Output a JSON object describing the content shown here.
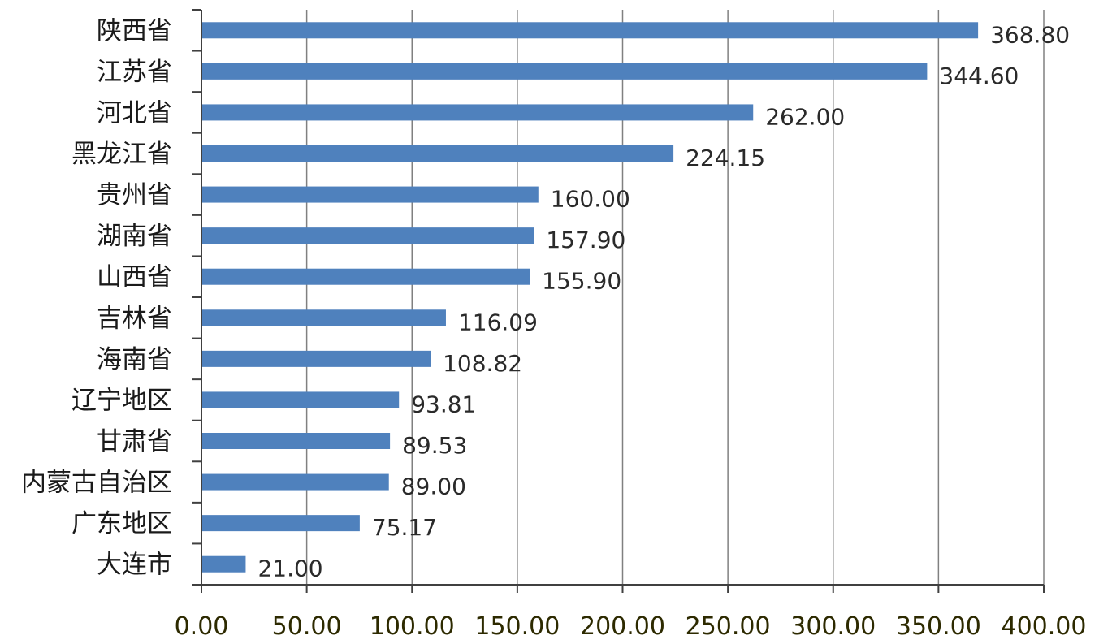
{
  "chart_data": {
    "type": "bar",
    "orientation": "horizontal",
    "title": "",
    "xlabel": "",
    "ylabel": "",
    "xlim": [
      0,
      400
    ],
    "x_ticks": [
      0,
      50,
      100,
      150,
      200,
      250,
      300,
      350,
      400
    ],
    "x_tick_labels": [
      "0.00",
      "50.00",
      "100.00",
      "150.00",
      "200.00",
      "250.00",
      "300.00",
      "350.00",
      "400.00"
    ],
    "categories": [
      "陕西省",
      "江苏省",
      "河北省",
      "黑龙江省",
      "贵州省",
      "湖南省",
      "山西省",
      "吉林省",
      "海南省",
      "辽宁地区",
      "甘肃省",
      "内蒙古自治区",
      "广东地区",
      "大连市"
    ],
    "values": [
      368.8,
      344.6,
      262.0,
      224.15,
      160.0,
      157.9,
      155.9,
      116.09,
      108.82,
      93.81,
      89.53,
      89.0,
      75.17,
      21.0
    ],
    "value_labels": [
      "368.80",
      "344.60",
      "262.00",
      "224.15",
      "160.00",
      "157.90",
      "155.90",
      "116.09",
      "108.82",
      "93.81",
      "89.53",
      "89.00",
      "75.17",
      "21.00"
    ],
    "grid": "vertical",
    "legend": "none",
    "colors": {
      "bar": "#4f81bd",
      "grid": "#808080",
      "axis": "#404040",
      "category_text": "#1a1a1a",
      "value_text": "#2a2a2a",
      "tick_text": "#2d2a00"
    }
  }
}
